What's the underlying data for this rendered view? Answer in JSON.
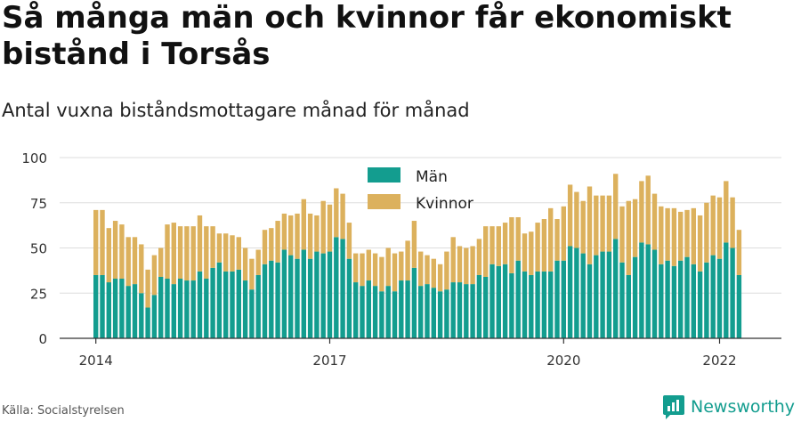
{
  "title": "Så många män och kvinnor får ekonomiskt bistånd i Torsås",
  "subtitle": "Antal vuxna biståndsmottagare månad för månad",
  "source": "Källa: Socialstyrelsen",
  "brand": "Newsworthy",
  "colors": {
    "man": "#139d8f",
    "kvinnor": "#dcb15d",
    "grid": "#dddddd",
    "axis": "#333333",
    "brand": "#139d8f"
  },
  "chart_data": {
    "type": "bar",
    "stacked": true,
    "start_month": "2014-01",
    "xtick_labels": [
      "2014",
      "2017",
      "2020",
      "2022"
    ],
    "yticks": [
      0,
      25,
      50,
      75,
      100
    ],
    "ylim": [
      0,
      100
    ],
    "legend": {
      "position": "top-center",
      "entries": [
        "Män",
        "Kvinnor"
      ]
    },
    "grid": true,
    "series": [
      {
        "name": "Män",
        "values": [
          35,
          35,
          31,
          33,
          33,
          29,
          30,
          25,
          17,
          24,
          34,
          33,
          30,
          33,
          32,
          32,
          37,
          33,
          39,
          42,
          37,
          37,
          38,
          32,
          27,
          35,
          41,
          43,
          42,
          49,
          46,
          44,
          49,
          44,
          48,
          47,
          48,
          56,
          55,
          44,
          31,
          29,
          32,
          29,
          26,
          29,
          26,
          32,
          32,
          39,
          29,
          30,
          28,
          26,
          27,
          31,
          31,
          30,
          30,
          35,
          34,
          41,
          40,
          41,
          36,
          43,
          37,
          35,
          37,
          37,
          37,
          43,
          43,
          51,
          50,
          47,
          41,
          46,
          48,
          48,
          55,
          42,
          35,
          45,
          53,
          52,
          49,
          41,
          43,
          40,
          43,
          45,
          41,
          37,
          42,
          46,
          44,
          53,
          50,
          35
        ]
      },
      {
        "name": "Kvinnor",
        "values": [
          36,
          36,
          30,
          32,
          30,
          27,
          26,
          27,
          21,
          22,
          16,
          30,
          34,
          29,
          30,
          30,
          31,
          29,
          23,
          16,
          21,
          20,
          18,
          18,
          17,
          14,
          19,
          18,
          23,
          20,
          22,
          25,
          28,
          25,
          20,
          29,
          26,
          27,
          25,
          20,
          16,
          18,
          17,
          18,
          19,
          21,
          21,
          16,
          22,
          26,
          19,
          16,
          16,
          15,
          21,
          25,
          20,
          20,
          21,
          20,
          28,
          21,
          22,
          23,
          31,
          24,
          21,
          24,
          27,
          29,
          35,
          23,
          30,
          34,
          31,
          29,
          43,
          33,
          31,
          31,
          36,
          31,
          41,
          32,
          34,
          38,
          31,
          32,
          29,
          32,
          27,
          26,
          31,
          31,
          33,
          33,
          34,
          34,
          28,
          25
        ]
      }
    ]
  }
}
